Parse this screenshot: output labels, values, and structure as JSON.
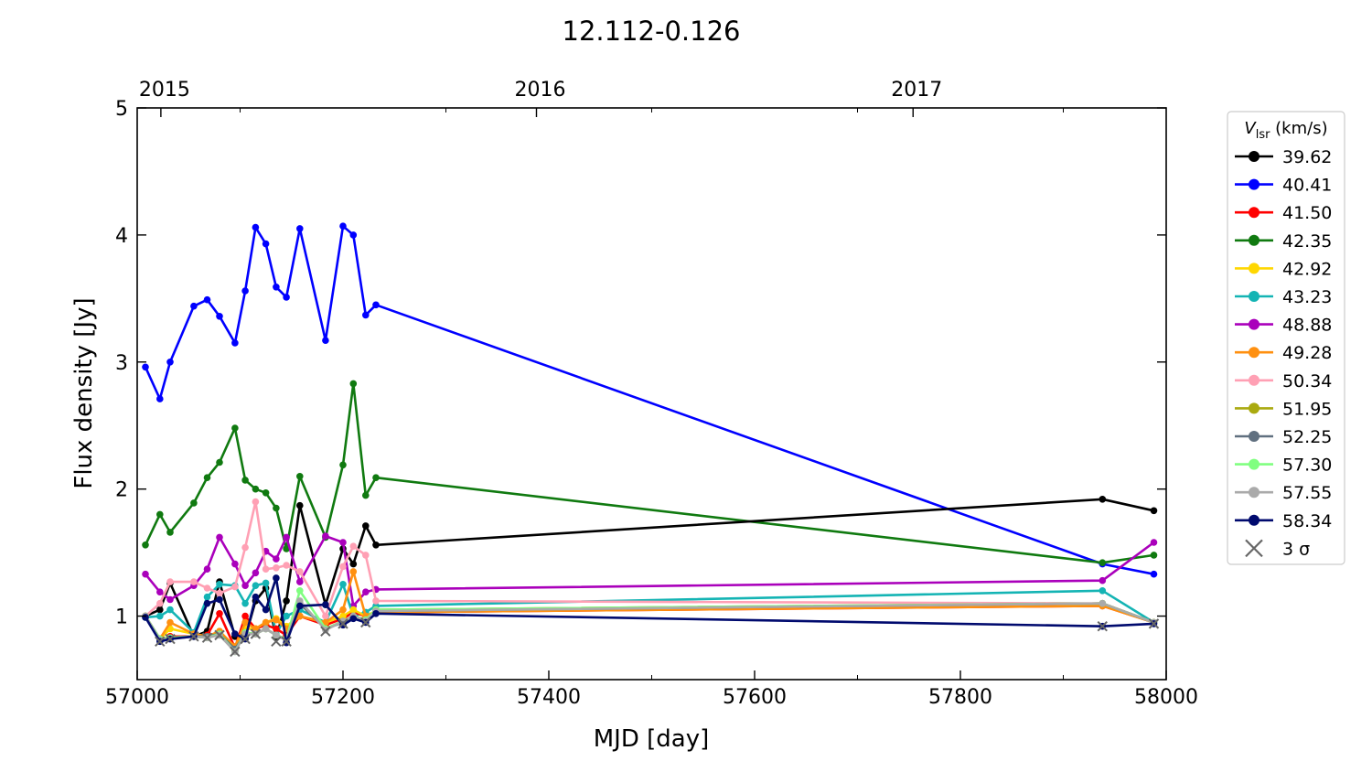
{
  "chart_data": {
    "type": "line",
    "title": "12.112-0.126",
    "xlabel": "MJD [day]",
    "ylabel": "Flux density [Jy]",
    "xlim": [
      57000,
      58000
    ],
    "ylim": [
      0.5,
      5
    ],
    "x_ticks": [
      57000,
      57200,
      57400,
      57600,
      57800,
      58000
    ],
    "y_ticks": [
      1,
      2,
      3,
      4,
      5
    ],
    "top_axis_ticks": [
      {
        "label": "2015",
        "mjd": 57023
      },
      {
        "label": "2016",
        "mjd": 57388
      },
      {
        "label": "2017",
        "mjd": 57754
      }
    ],
    "grid": false,
    "legend": {
      "position": "outside-right",
      "title_symbol": "V",
      "title_subscript": "lsr",
      "title_unit": " (km/s)",
      "sigma_marker": "×",
      "sigma_label": "3 σ"
    },
    "series": [
      {
        "name": "40.41",
        "color": "#0000ff",
        "x": [
          57008,
          57022,
          57032,
          57055,
          57068,
          57080,
          57095,
          57105,
          57115,
          57125,
          57135,
          57145,
          57158,
          57183,
          57200,
          57210,
          57222,
          57232,
          57938,
          57988
        ],
        "y": [
          2.96,
          2.71,
          3.0,
          3.44,
          3.49,
          3.36,
          3.15,
          3.56,
          4.06,
          3.93,
          3.59,
          3.51,
          4.05,
          3.17,
          4.07,
          4.0,
          3.37,
          3.45,
          1.41,
          1.33
        ]
      },
      {
        "name": "42.35",
        "color": "#107a10",
        "x": [
          57008,
          57022,
          57032,
          57055,
          57068,
          57080,
          57095,
          57105,
          57115,
          57125,
          57135,
          57145,
          57158,
          57183,
          57200,
          57210,
          57222,
          57232,
          57938,
          57988
        ],
        "y": [
          1.56,
          1.8,
          1.66,
          1.89,
          2.09,
          2.21,
          2.48,
          2.07,
          2.0,
          1.97,
          1.85,
          1.53,
          2.1,
          1.62,
          2.19,
          2.83,
          1.95,
          2.09,
          1.42,
          1.48
        ]
      },
      {
        "name": "39.62",
        "color": "#000000",
        "x": [
          57008,
          57022,
          57032,
          57055,
          57068,
          57080,
          57095,
          57105,
          57115,
          57125,
          57135,
          57145,
          57158,
          57183,
          57200,
          57210,
          57222,
          57232,
          57938,
          57988
        ],
        "y": [
          1.0,
          1.05,
          1.26,
          0.84,
          0.88,
          1.27,
          0.84,
          0.83,
          1.12,
          1.22,
          0.83,
          1.12,
          1.87,
          1.09,
          1.53,
          1.41,
          1.71,
          1.56,
          1.92,
          1.83
        ]
      },
      {
        "name": "48.88",
        "color": "#aa00bb",
        "x": [
          57008,
          57022,
          57032,
          57055,
          57068,
          57080,
          57095,
          57105,
          57115,
          57125,
          57135,
          57145,
          57158,
          57183,
          57200,
          57210,
          57222,
          57232,
          57938,
          57988
        ],
        "y": [
          1.33,
          1.19,
          1.13,
          1.24,
          1.37,
          1.62,
          1.41,
          1.24,
          1.34,
          1.51,
          1.45,
          1.62,
          1.27,
          1.63,
          1.58,
          1.08,
          1.19,
          1.21,
          1.28,
          1.58
        ]
      },
      {
        "name": "43.23",
        "color": "#14b4b4",
        "x": [
          57008,
          57022,
          57032,
          57055,
          57068,
          57080,
          57095,
          57105,
          57115,
          57125,
          57135,
          57145,
          57158,
          57183,
          57200,
          57210,
          57222,
          57232,
          57938,
          57988
        ],
        "y": [
          0.99,
          1.0,
          1.05,
          0.87,
          1.15,
          1.25,
          1.24,
          1.1,
          1.24,
          1.26,
          0.86,
          1.0,
          1.05,
          0.95,
          1.25,
          1.0,
          1.03,
          1.08,
          1.2,
          0.95
        ]
      },
      {
        "name": "50.34",
        "color": "#ffa0b4",
        "x": [
          57008,
          57022,
          57032,
          57055,
          57068,
          57080,
          57095,
          57105,
          57115,
          57125,
          57135,
          57145,
          57158,
          57183,
          57200,
          57210,
          57222,
          57232,
          57938,
          57988
        ],
        "y": [
          1.0,
          1.1,
          1.27,
          1.27,
          1.22,
          1.18,
          1.23,
          1.54,
          1.9,
          1.37,
          1.38,
          1.4,
          1.35,
          1.0,
          1.39,
          1.55,
          1.48,
          1.12,
          1.1,
          0.95
        ]
      },
      {
        "name": "41.50",
        "color": "#ff0000",
        "x": [
          57008,
          57022,
          57032,
          57055,
          57068,
          57080,
          57095,
          57105,
          57115,
          57125,
          57135,
          57145,
          57158,
          57183,
          57200,
          57210,
          57222,
          57232,
          57938,
          57988
        ],
        "y": [
          1.0,
          0.81,
          0.84,
          0.84,
          0.85,
          1.02,
          0.75,
          1.0,
          0.9,
          0.93,
          0.9,
          0.85,
          1.0,
          0.93,
          0.98,
          1.03,
          1.0,
          1.03,
          1.08,
          0.95
        ]
      },
      {
        "name": "42.92",
        "color": "#ffd700",
        "x": [
          57008,
          57022,
          57032,
          57055,
          57068,
          57080,
          57095,
          57105,
          57115,
          57125,
          57135,
          57145,
          57158,
          57183,
          57200,
          57210,
          57222,
          57232,
          57938,
          57988
        ],
        "y": [
          1.0,
          0.82,
          0.9,
          0.86,
          0.84,
          0.88,
          0.76,
          0.9,
          0.9,
          0.95,
          0.98,
          0.92,
          1.0,
          0.95,
          1.0,
          1.05,
          1.0,
          1.04,
          1.1,
          0.95
        ]
      },
      {
        "name": "49.28",
        "color": "#ff9010",
        "x": [
          57008,
          57022,
          57032,
          57055,
          57068,
          57080,
          57095,
          57105,
          57115,
          57125,
          57135,
          57145,
          57158,
          57183,
          57200,
          57210,
          57222,
          57232,
          57938,
          57988
        ],
        "y": [
          1.0,
          0.82,
          0.95,
          0.86,
          0.84,
          0.88,
          0.76,
          0.95,
          0.9,
          0.95,
          0.97,
          0.9,
          1.0,
          0.95,
          1.05,
          1.35,
          1.0,
          1.03,
          1.08,
          0.95
        ]
      },
      {
        "name": "51.95",
        "color": "#aaaa10",
        "x": [
          57008,
          57022,
          57032,
          57055,
          57068,
          57080,
          57095,
          57105,
          57115,
          57125,
          57135,
          57145,
          57158,
          57183,
          57200,
          57210,
          57222,
          57232,
          57938,
          57988
        ],
        "y": [
          1.0,
          0.82,
          0.83,
          0.84,
          0.83,
          0.86,
          0.73,
          0.87,
          0.86,
          0.9,
          0.85,
          0.82,
          1.1,
          0.9,
          0.96,
          1.0,
          0.97,
          1.05,
          1.1,
          0.95
        ]
      },
      {
        "name": "52.25",
        "color": "#607080",
        "x": [
          57008,
          57022,
          57032,
          57055,
          57068,
          57080,
          57095,
          57105,
          57115,
          57125,
          57135,
          57145,
          57158,
          57183,
          57200,
          57210,
          57222,
          57232,
          57938,
          57988
        ],
        "y": [
          1.0,
          0.82,
          0.83,
          0.84,
          0.84,
          0.86,
          0.74,
          0.86,
          0.86,
          0.9,
          0.85,
          0.82,
          1.1,
          0.9,
          0.95,
          1.0,
          0.97,
          1.04,
          1.1,
          0.95
        ]
      },
      {
        "name": "57.30",
        "color": "#80ff80",
        "x": [
          57008,
          57022,
          57032,
          57055,
          57068,
          57080,
          57095,
          57105,
          57115,
          57125,
          57135,
          57145,
          57158,
          57183,
          57200,
          57210,
          57222,
          57232,
          57938,
          57988
        ],
        "y": [
          1.0,
          0.82,
          0.83,
          0.84,
          0.83,
          0.86,
          0.72,
          0.87,
          0.86,
          0.9,
          0.85,
          0.82,
          1.2,
          0.9,
          0.96,
          1.0,
          0.97,
          1.05,
          1.1,
          0.95
        ]
      },
      {
        "name": "57.55",
        "color": "#aaaaaa",
        "x": [
          57008,
          57022,
          57032,
          57055,
          57068,
          57080,
          57095,
          57105,
          57115,
          57125,
          57135,
          57145,
          57158,
          57183,
          57200,
          57210,
          57222,
          57232,
          57938,
          57988
        ],
        "y": [
          1.0,
          0.81,
          0.82,
          0.84,
          0.83,
          0.85,
          0.72,
          0.86,
          0.86,
          0.9,
          0.85,
          0.81,
          1.12,
          0.89,
          0.96,
          1.0,
          0.96,
          1.04,
          1.1,
          0.95
        ]
      },
      {
        "name": "58.34",
        "color": "#000a6e",
        "x": [
          57008,
          57022,
          57032,
          57055,
          57068,
          57080,
          57095,
          57105,
          57115,
          57125,
          57135,
          57145,
          57158,
          57183,
          57200,
          57210,
          57222,
          57232,
          57938,
          57988
        ],
        "y": [
          0.99,
          0.8,
          0.82,
          0.84,
          1.1,
          1.13,
          0.86,
          0.82,
          1.15,
          1.05,
          1.3,
          0.79,
          1.08,
          1.09,
          0.93,
          0.98,
          0.95,
          1.02,
          0.92,
          0.94
        ]
      }
    ],
    "legend_order": [
      "39.62",
      "40.41",
      "41.50",
      "42.35",
      "42.92",
      "43.23",
      "48.88",
      "49.28",
      "50.34",
      "51.95",
      "52.25",
      "57.30",
      "57.55",
      "58.34"
    ],
    "legend_colors": {
      "39.62": "#000000",
      "40.41": "#0000ff",
      "41.50": "#ff0000",
      "42.35": "#107a10",
      "42.92": "#ffd700",
      "43.23": "#14b4b4",
      "48.88": "#aa00bb",
      "49.28": "#ff9010",
      "50.34": "#ffa0b4",
      "51.95": "#aaaa10",
      "52.25": "#607080",
      "57.30": "#80ff80",
      "57.55": "#aaaaaa",
      "58.34": "#000a6e"
    },
    "sigma_points": [
      {
        "x": 57022,
        "y": 0.8
      },
      {
        "x": 57032,
        "y": 0.82
      },
      {
        "x": 57055,
        "y": 0.84
      },
      {
        "x": 57068,
        "y": 0.83
      },
      {
        "x": 57080,
        "y": 0.85
      },
      {
        "x": 57095,
        "y": 0.72
      },
      {
        "x": 57105,
        "y": 0.82
      },
      {
        "x": 57115,
        "y": 0.86
      },
      {
        "x": 57135,
        "y": 0.8
      },
      {
        "x": 57145,
        "y": 0.8
      },
      {
        "x": 57183,
        "y": 0.88
      },
      {
        "x": 57200,
        "y": 0.94
      },
      {
        "x": 57222,
        "y": 0.95
      },
      {
        "x": 57938,
        "y": 0.92
      },
      {
        "x": 57988,
        "y": 0.94
      }
    ]
  }
}
